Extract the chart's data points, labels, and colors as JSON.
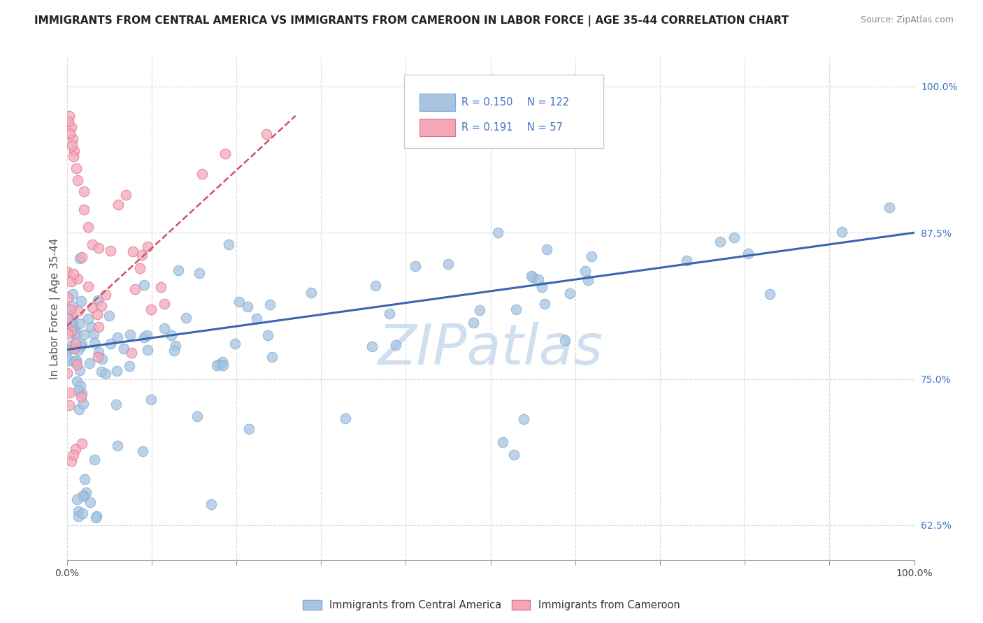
{
  "title": "IMMIGRANTS FROM CENTRAL AMERICA VS IMMIGRANTS FROM CAMEROON IN LABOR FORCE | AGE 35-44 CORRELATION CHART",
  "source": "Source: ZipAtlas.com",
  "ylabel": "In Labor Force | Age 35-44",
  "y_tick_labels_right": [
    "62.5%",
    "75.0%",
    "87.5%",
    "100.0%"
  ],
  "legend_blue_label": "Immigrants from Central America",
  "legend_pink_label": "Immigrants from Cameroon",
  "R_blue": "0.150",
  "N_blue": "122",
  "R_pink": "0.191",
  "N_pink": "57",
  "blue_color": "#a8c4e0",
  "blue_edge_color": "#7aadd4",
  "blue_line_color": "#3a65b0",
  "pink_color": "#f4a7b9",
  "pink_edge_color": "#e07090",
  "pink_line_color": "#d05070",
  "watermark": "ZIPatlas",
  "watermark_color": "#d0dff0",
  "xlim": [
    0.0,
    1.0
  ],
  "ylim": [
    0.595,
    1.025
  ],
  "y_ticks": [
    0.625,
    0.75,
    0.875,
    1.0
  ],
  "blue_line_x": [
    0.0,
    1.0
  ],
  "blue_line_y": [
    0.775,
    0.875
  ],
  "pink_line_x": [
    0.0,
    0.27
  ],
  "pink_line_y": [
    0.795,
    0.975
  ],
  "grid_color": "#d8d8d8",
  "bg_color": "#ffffff",
  "title_fontsize": 11,
  "axis_label_fontsize": 11,
  "tick_fontsize": 10
}
